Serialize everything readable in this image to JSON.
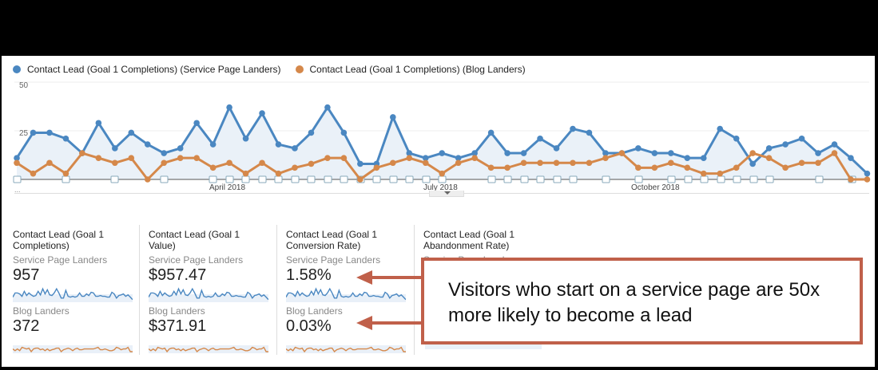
{
  "legend": {
    "series1": {
      "label": "Contact Lead (Goal 1 Completions) (Service Page Landers)",
      "color": "#4a87c1"
    },
    "series2": {
      "label": "Contact Lead (Goal 1 Completions) (Blog Landers)",
      "color": "#d5884a"
    }
  },
  "axis": {
    "y_top": "50",
    "y_mid": "25",
    "x_labels": [
      "April 2018",
      "July 2018",
      "October 2018"
    ],
    "ellipsis": "..."
  },
  "chart_data": {
    "type": "line",
    "title": "",
    "xlabel": "",
    "ylabel": "",
    "ylim": [
      0,
      50
    ],
    "yticks": [
      25,
      50
    ],
    "x_tick_labels": [
      "April 2018",
      "July 2018",
      "October 2018"
    ],
    "grid": true,
    "legend_position": "top",
    "series": [
      {
        "name": "Contact Lead (Goal 1 Completions) (Service Page Landers)",
        "color": "#4a87c1",
        "values": [
          11,
          24,
          24,
          21,
          13.5,
          29,
          16,
          24,
          18,
          13.5,
          16,
          29,
          18,
          37,
          21,
          34,
          18,
          16,
          24,
          37,
          24,
          8,
          8,
          32,
          13.5,
          11,
          13.5,
          11,
          13.5,
          24,
          13.5,
          13.5,
          21,
          16,
          26,
          24,
          13.5,
          13.5,
          16,
          13.5,
          13.5,
          11,
          11,
          26,
          21,
          8,
          16,
          18,
          21,
          13.5,
          18,
          11,
          3
        ]
      },
      {
        "name": "Contact Lead (Goal 1 Completions) (Blog Landers)",
        "color": "#d5884a",
        "values": [
          8.5,
          3,
          8.5,
          3,
          13.5,
          11,
          8.5,
          11,
          0,
          8.5,
          11,
          11,
          6,
          8.5,
          3,
          8.5,
          3,
          6,
          8,
          11,
          11,
          0,
          6,
          8.5,
          11,
          8.5,
          3,
          8.5,
          11,
          6,
          6,
          8.5,
          8.5,
          8.5,
          8.5,
          8.5,
          11,
          13.5,
          6,
          6,
          8.5,
          6,
          3,
          3,
          6,
          13.5,
          11,
          6,
          8.5,
          8.5,
          13.5,
          0,
          0
        ]
      }
    ]
  },
  "cards": [
    {
      "title": "Contact Lead (Goal 1 Completions)",
      "seg1": "Service Page Landers",
      "val1": "957",
      "seg2": "Blog Landers",
      "val2": "372"
    },
    {
      "title": "Contact Lead (Goal 1 Value)",
      "seg1": "Service Page Landers",
      "val1": "$957.47",
      "seg2": "Blog Landers",
      "val2": "$371.91"
    },
    {
      "title": "Contact Lead (Goal 1 Conversion Rate)",
      "seg1": "Service Page Landers",
      "val1": "1.58%",
      "seg2": "Blog Landers",
      "val2": "0.03%"
    },
    {
      "title": "Contact Lead (Goal 1 Abandonment Rate)",
      "seg1": "Service Page Landers",
      "val1": "",
      "seg2": "",
      "val2": ""
    }
  ],
  "callout": {
    "text": "Visitors who start on a service page are 50x more likely to become a lead",
    "border_color": "#c0604a"
  }
}
